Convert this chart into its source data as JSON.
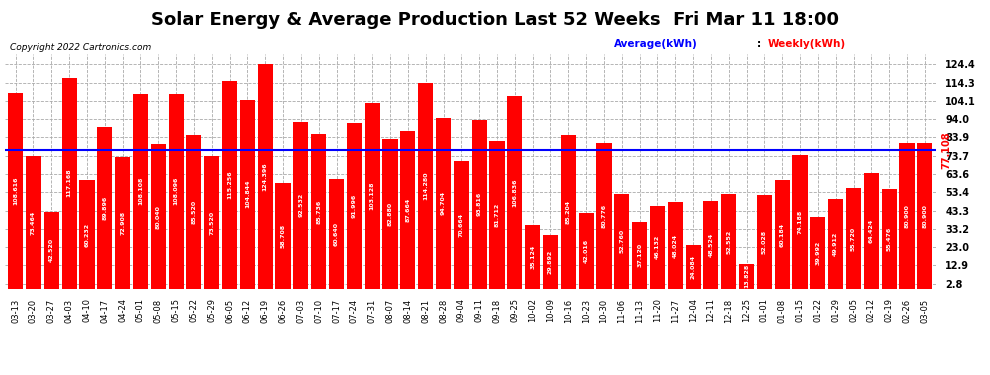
{
  "title": "Solar Energy & Average Production Last 52 Weeks  Fri Mar 11 18:00",
  "copyright": "Copyright 2022 Cartronics.com",
  "legend_avg": "Average(kWh)",
  "legend_weekly": "Weekly(kWh)",
  "avg_line_value": 77.108,
  "avg_line_label": "77.108",
  "bar_color": "#ff0000",
  "avg_line_color": "#0000ff",
  "avg_label_color": "#ff0000",
  "background_color": "#ffffff",
  "grid_color": "#aaaaaa",
  "yticks": [
    2.8,
    12.9,
    23.0,
    33.2,
    43.3,
    53.4,
    63.6,
    73.7,
    83.9,
    94.0,
    104.1,
    114.3,
    124.4
  ],
  "ylim": [
    0,
    130
  ],
  "xlabels": [
    "03-13",
    "03-20",
    "03-27",
    "04-03",
    "04-10",
    "04-17",
    "04-24",
    "05-01",
    "05-08",
    "05-15",
    "05-22",
    "05-29",
    "06-05",
    "06-12",
    "06-19",
    "06-26",
    "07-03",
    "07-10",
    "07-17",
    "07-24",
    "07-31",
    "08-07",
    "08-14",
    "08-21",
    "08-28",
    "09-04",
    "09-11",
    "09-18",
    "09-25",
    "10-02",
    "10-09",
    "10-16",
    "10-23",
    "10-30",
    "11-06",
    "11-13",
    "11-20",
    "11-27",
    "12-04",
    "12-11",
    "12-18",
    "12-25",
    "01-01",
    "01-08",
    "01-15",
    "01-22",
    "01-29",
    "02-05",
    "02-12",
    "02-19",
    "02-26",
    "03-05"
  ],
  "values": [
    108.616,
    73.464,
    42.52,
    117.168,
    60.232,
    89.896,
    72.908,
    108.108,
    80.04,
    108.096,
    85.52,
    73.52,
    115.256,
    104.844,
    124.396,
    58.708,
    92.532,
    85.736,
    60.64,
    91.996,
    103.128,
    82.88,
    87.664,
    114.28,
    94.704,
    70.664,
    93.816,
    81.712,
    106.836,
    35.124,
    29.892,
    85.204,
    42.016,
    80.776,
    52.76,
    37.12,
    46.132,
    48.024,
    24.084,
    48.524,
    52.552,
    13.828,
    52.028,
    60.184,
    74.188,
    39.992,
    49.912,
    55.72,
    64.424,
    55.476,
    80.9,
    80.9
  ],
  "title_fontsize": 13,
  "bar_label_fontsize": 4.5,
  "yaxis_fontsize": 7,
  "xaxis_fontsize": 6,
  "copyright_fontsize": 6.5,
  "legend_fontsize": 7.5
}
